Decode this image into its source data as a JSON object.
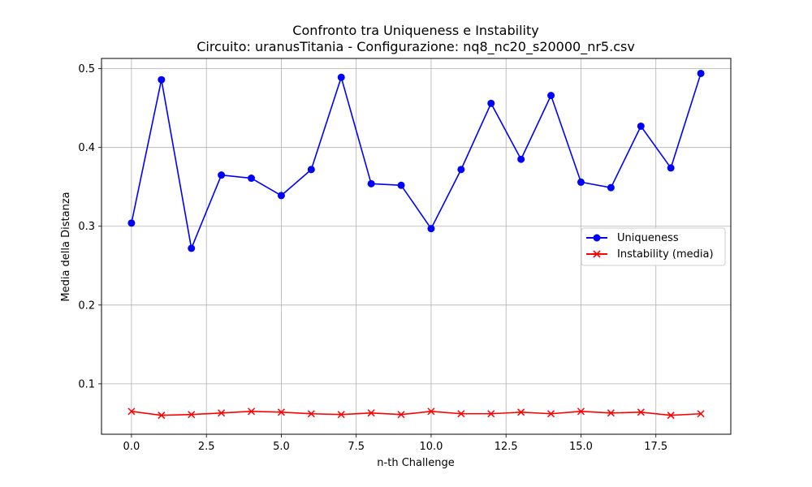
{
  "chart_data": {
    "type": "line",
    "title": "Confronto tra Uniqueness e Instability",
    "subtitle": "Circuito: uranusTitania - Configurazione: nq8_nc20_s20000_nr5.csv",
    "xlabel": "n-th Challenge",
    "ylabel": "Media della Distanza",
    "xlim": [
      -1.0,
      20.0
    ],
    "ylim": [
      0.036,
      0.513
    ],
    "xticks": [
      0.0,
      2.5,
      5.0,
      7.5,
      10.0,
      12.5,
      15.0,
      17.5
    ],
    "xtick_labels": [
      "0.0",
      "2.5",
      "5.0",
      "7.5",
      "10.0",
      "12.5",
      "15.0",
      "17.5"
    ],
    "yticks": [
      0.1,
      0.2,
      0.3,
      0.4,
      0.5
    ],
    "ytick_labels": [
      "0.1",
      "0.2",
      "0.3",
      "0.4",
      "0.5"
    ],
    "grid": true,
    "legend_position": "center-right",
    "x": [
      0,
      1,
      2,
      3,
      4,
      5,
      6,
      7,
      8,
      9,
      10,
      11,
      12,
      13,
      14,
      15,
      16,
      17,
      18,
      19
    ],
    "series": [
      {
        "name": "Uniqueness",
        "color": "#0000ff",
        "marker": "circle",
        "values": [
          0.304,
          0.486,
          0.272,
          0.365,
          0.361,
          0.339,
          0.372,
          0.489,
          0.354,
          0.352,
          0.297,
          0.372,
          0.456,
          0.385,
          0.466,
          0.356,
          0.349,
          0.427,
          0.374,
          0.494
        ]
      },
      {
        "name": "Instability (media)",
        "color": "#ff0000",
        "marker": "x",
        "values": [
          0.065,
          0.06,
          0.061,
          0.063,
          0.065,
          0.064,
          0.062,
          0.061,
          0.063,
          0.061,
          0.065,
          0.062,
          0.062,
          0.064,
          0.062,
          0.065,
          0.063,
          0.064,
          0.06,
          0.062
        ]
      }
    ]
  }
}
